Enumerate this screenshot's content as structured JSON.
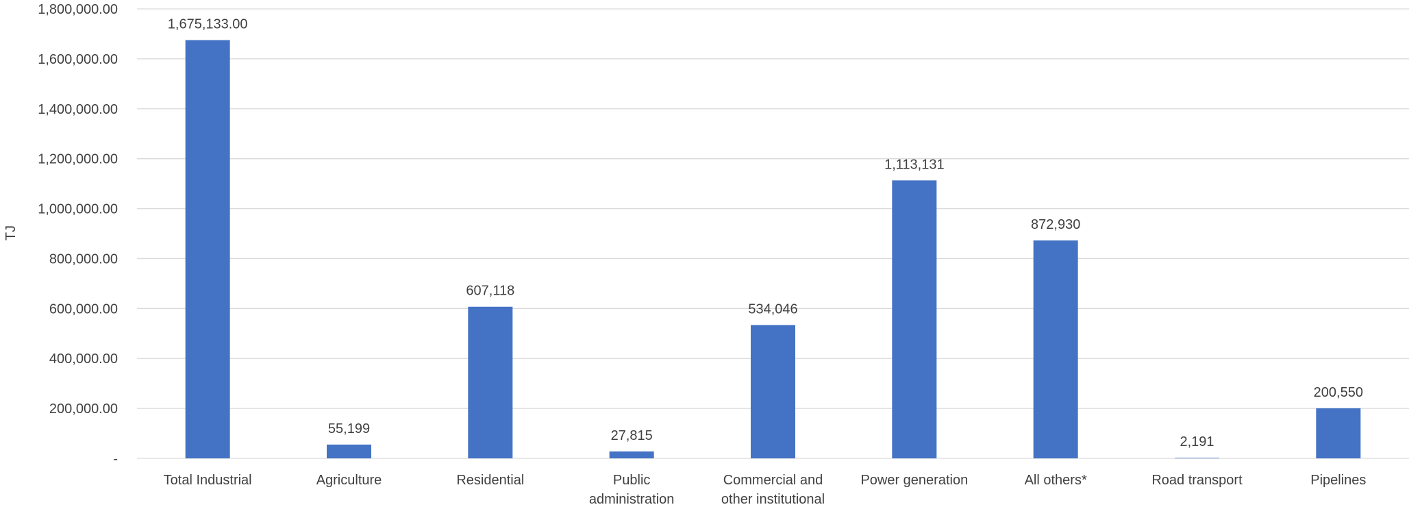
{
  "chart_data": {
    "type": "bar",
    "title": "",
    "xlabel": "",
    "ylabel": "TJ",
    "ylim": [
      0,
      1800000
    ],
    "grid": true,
    "legend": "none",
    "categories": [
      [
        "Total Industrial"
      ],
      [
        "Agriculture"
      ],
      [
        "Residential"
      ],
      [
        "Public",
        "administration"
      ],
      [
        "Commercial and",
        "other institutional"
      ],
      [
        "Power generation"
      ],
      [
        "All others*"
      ],
      [
        "Road transport"
      ],
      [
        "Pipelines"
      ]
    ],
    "values": [
      1675133,
      55199,
      607118,
      27815,
      534046,
      1113131,
      872930,
      2191,
      200550
    ],
    "data_labels": [
      "1,675,133.00",
      "55,199",
      "607,118",
      "27,815",
      "534,046",
      "1,113,131",
      "872,930",
      "2,191",
      "200,550"
    ],
    "y_tick_values": [
      0,
      200000,
      400000,
      600000,
      800000,
      1000000,
      1200000,
      1400000,
      1600000,
      1800000
    ],
    "y_tick_labels": [
      "-",
      "200,000.00",
      "400,000.00",
      "600,000.00",
      "800,000.00",
      "1,000,000.00",
      "1,200,000.00",
      "1,400,000.00",
      "1,600,000.00",
      "1,800,000.00"
    ],
    "colors": {
      "bar": "#4472C4",
      "grid": "#D9D9D9",
      "text": "#404040"
    }
  }
}
